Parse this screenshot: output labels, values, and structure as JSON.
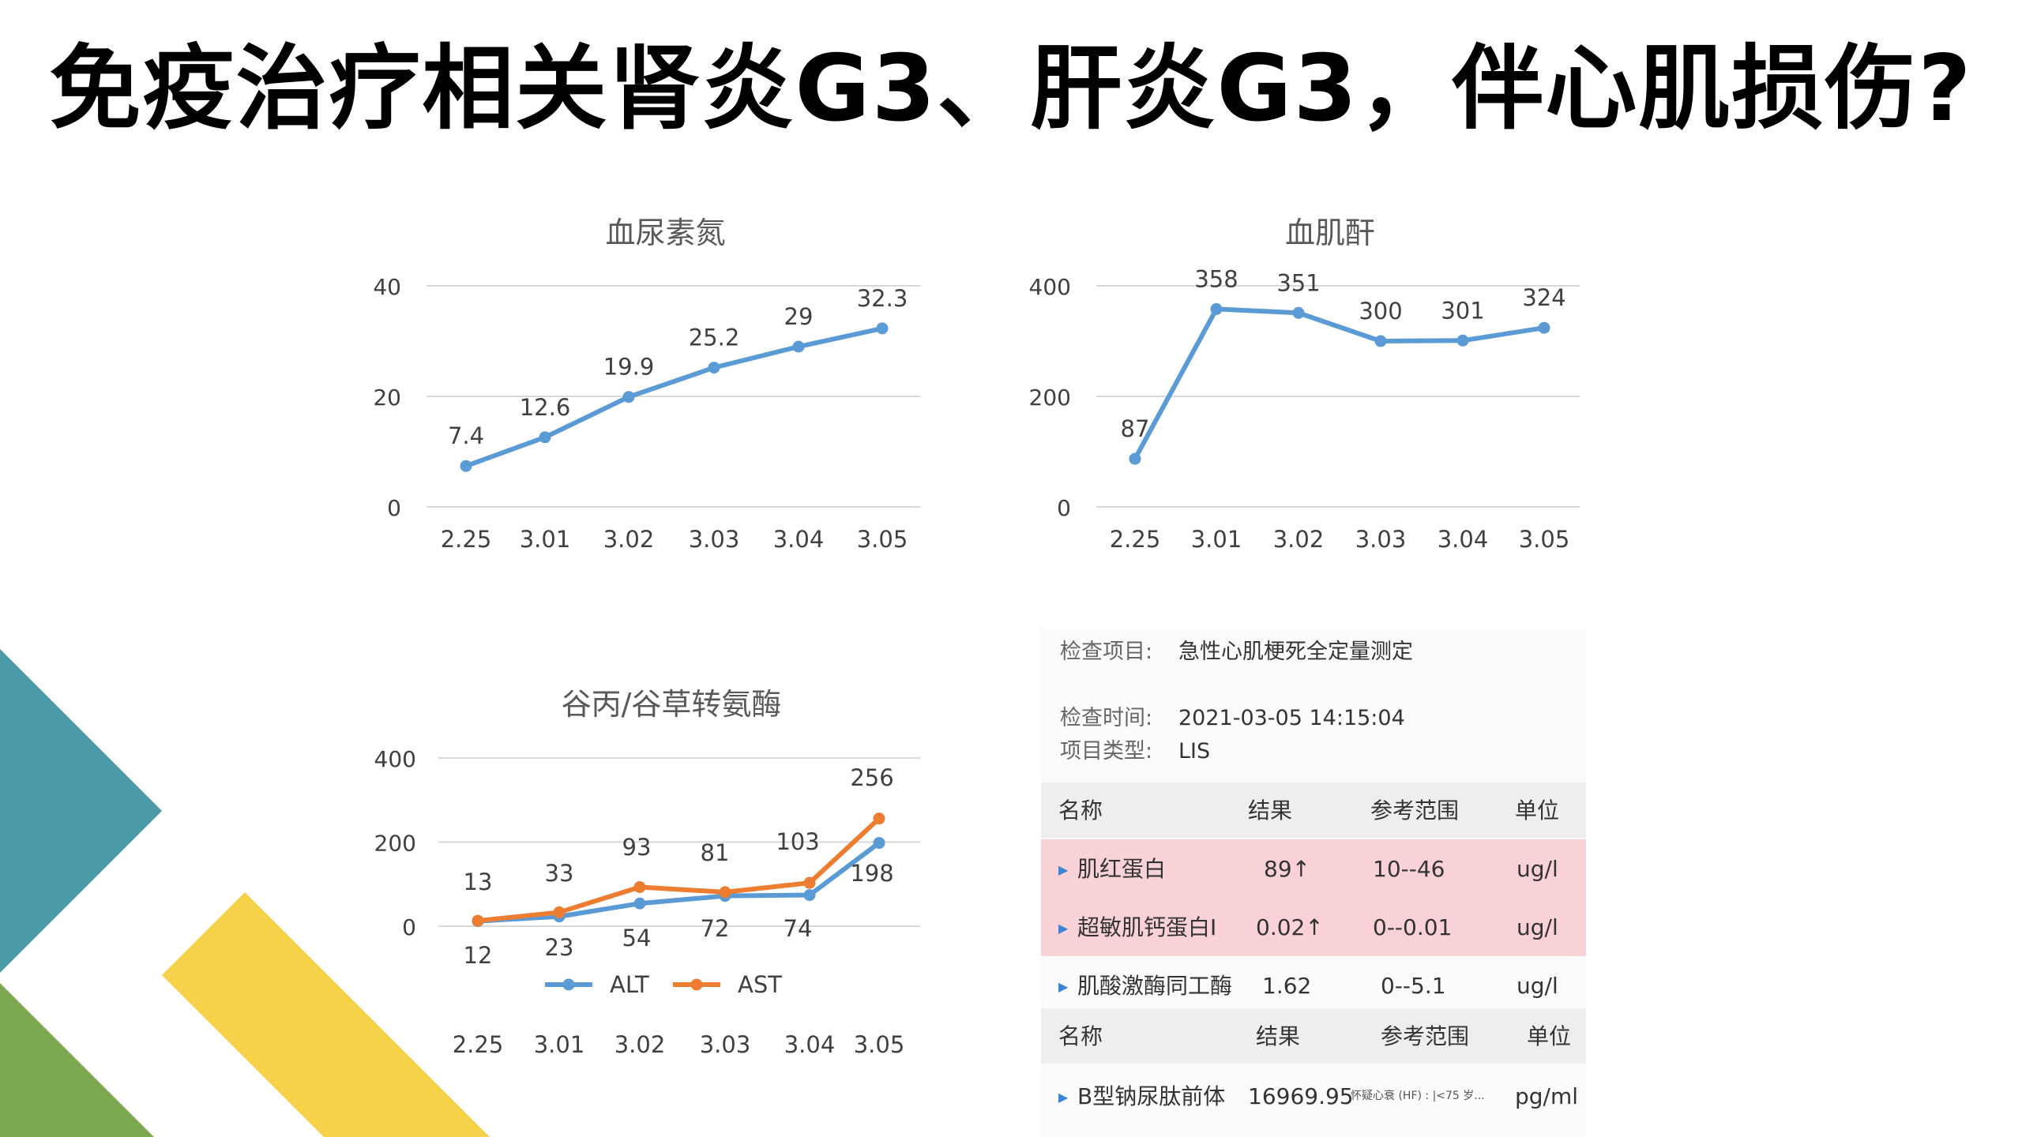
{
  "slide": {
    "title": "免疫治疗相关肾炎G3、肝炎G3，伴心肌损伤?"
  },
  "colors": {
    "blue_series": "#5b9bd5",
    "orange_series": "#ed7d31",
    "teal_deco": "#4a9aa8",
    "green_deco": "#7ba84e",
    "yellow_deco": "#f5d14a",
    "highlight_row": "#f8d2d7"
  },
  "chart_data": [
    {
      "type": "line",
      "title": "血尿素氮",
      "categories": [
        "2.25",
        "3.01",
        "3.02",
        "3.03",
        "3.04",
        "3.05"
      ],
      "series": [
        {
          "values": [
            7.4,
            12.6,
            19.9,
            25.2,
            29,
            32.3
          ]
        }
      ],
      "data_labels": [
        "7.4",
        "12.6",
        "19.9",
        "25.2",
        "29",
        "32.3"
      ],
      "yticks": [
        "40",
        "20",
        "0"
      ],
      "ylim": [
        0,
        40
      ],
      "grid": true
    },
    {
      "type": "line",
      "title": "血肌酐",
      "categories": [
        "2.25",
        "3.01",
        "3.02",
        "3.03",
        "3.04",
        "3.05"
      ],
      "series": [
        {
          "values": [
            87,
            358,
            351,
            300,
            301,
            324
          ]
        }
      ],
      "data_labels": [
        "87",
        "358",
        "351",
        "300",
        "301",
        "324"
      ],
      "yticks": [
        "400",
        "200",
        "0"
      ],
      "ylim": [
        0,
        400
      ],
      "grid": true
    },
    {
      "type": "line",
      "title": "谷丙/谷草转氨酶",
      "categories": [
        "2.25",
        "3.01",
        "3.02",
        "3.03",
        "3.04",
        "3.05"
      ],
      "series": [
        {
          "name": "ALT",
          "values": [
            12,
            23,
            54,
            72,
            74,
            198
          ],
          "labels": [
            "12",
            "23",
            "54",
            "72",
            "74",
            "198"
          ]
        },
        {
          "name": "AST",
          "values": [
            13,
            33,
            93,
            81,
            103,
            256
          ],
          "labels": [
            "13",
            "33",
            "93",
            "81",
            "103",
            "256"
          ]
        }
      ],
      "yticks": [
        "400",
        "200",
        "0"
      ],
      "ylim": [
        0,
        400
      ],
      "legend": "bottom",
      "grid": true
    }
  ],
  "lab": {
    "item_label": "检查项目:",
    "item_value": "急性心肌梗死全定量测定",
    "time_label": "检查时间:",
    "time_value": "2021-03-05 14:15:04",
    "type_label": "项目类型:",
    "type_value": "LIS",
    "header": {
      "name": "名称",
      "result": "结果",
      "range": "参考范围",
      "unit": "单位"
    },
    "rows": [
      {
        "name": "肌红蛋白",
        "result": "89↑",
        "range": "10--46",
        "unit": "ug/l"
      },
      {
        "name": "超敏肌钙蛋白I",
        "result": "0.02↑",
        "range": "0--0.01",
        "unit": "ug/l"
      },
      {
        "name": "肌酸激酶同工酶",
        "result": "1.62",
        "range": "0--5.1",
        "unit": "ug/l"
      }
    ],
    "bnp": {
      "name": "B型钠尿肽前体",
      "result": "16969.95",
      "range": "怀疑心衰 (HF) : |<75 岁...",
      "unit": "pg/ml"
    }
  }
}
